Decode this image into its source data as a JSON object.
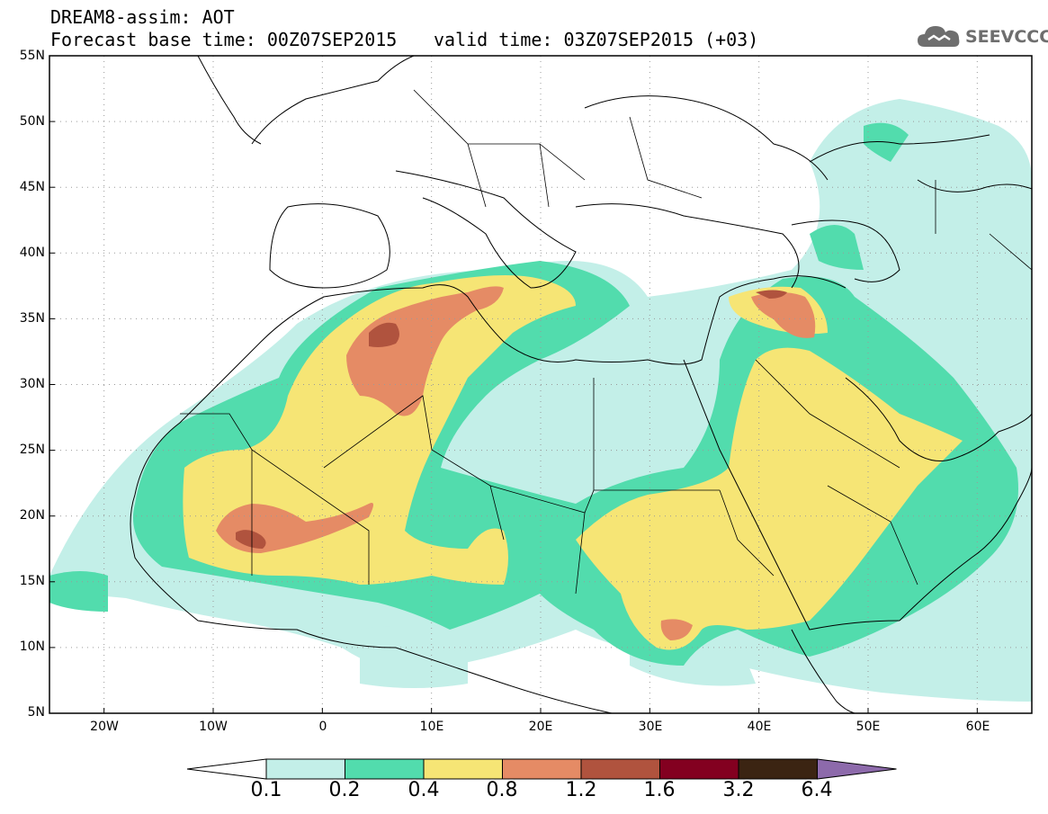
{
  "header": {
    "title_line1": "DREAM8-assim: AOT",
    "title_line2": "Forecast base time: 00Z07SEP2015",
    "valid_time": "valid time: 03Z07SEP2015 (+03)"
  },
  "logo": {
    "text": "SEEVCCC",
    "icon": "cloud-icon"
  },
  "map": {
    "lat_labels": [
      "55N",
      "50N",
      "45N",
      "40N",
      "35N",
      "30N",
      "25N",
      "20N",
      "15N",
      "10N",
      "5N"
    ],
    "lon_labels": [
      "20W",
      "10W",
      "0",
      "10E",
      "20E",
      "30E",
      "40E",
      "50E",
      "60E"
    ],
    "lon_range": [
      -25,
      65
    ],
    "lat_range": [
      5,
      55
    ],
    "grid": "dotted",
    "variable": "AOT"
  },
  "colorbar": {
    "levels": [
      "0.1",
      "0.2",
      "0.4",
      "0.8",
      "1.2",
      "1.6",
      "3.2",
      "6.4"
    ],
    "colors": [
      "#ffffff",
      "#c3efe8",
      "#52dcad",
      "#f6e575",
      "#e58b65",
      "#b0533e",
      "#830020",
      "#3b2412",
      "#8d6aab"
    ]
  }
}
